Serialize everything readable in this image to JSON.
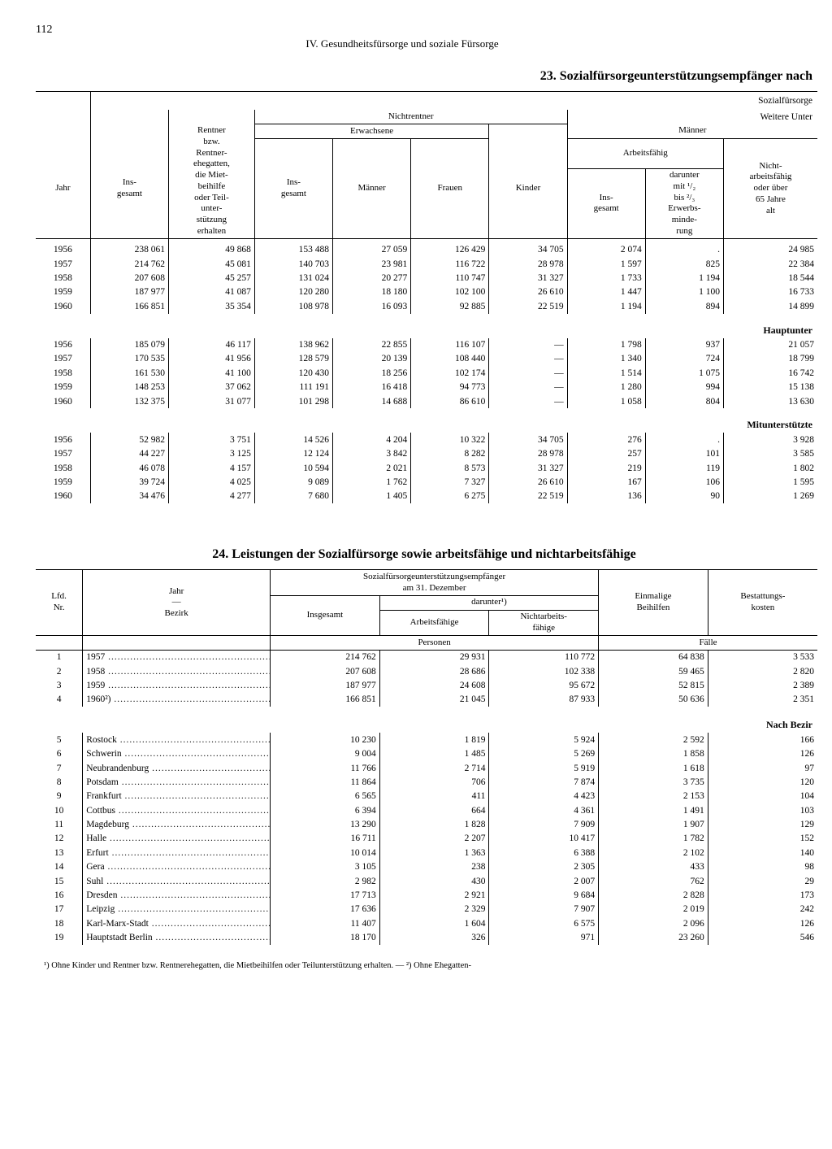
{
  "page": {
    "number": "112",
    "chapter": "IV. Gesundheitsfürsorge und soziale Fürsorge"
  },
  "t23": {
    "title": "23. Sozialfürsorgeunterstützungsempfänger nach",
    "superhead_right": "Sozialfürsorge",
    "headers": {
      "jahr": "Jahr",
      "insgesamt": "Ins-\ngesamt",
      "rentner": "Rentner\nbzw.\nRentner-\nehegatten,\ndie Miet-\nbeihilfe\noder Teil-\nunter-\nstützung\nerhalten",
      "nichtrentner": "Nichtrentner",
      "erwachsene": "Erwachsene",
      "erw_insgesamt": "Ins-\ngesamt",
      "maenner": "Männer",
      "frauen": "Frauen",
      "kinder": "Kinder",
      "weitere": "Weitere Unter",
      "maenner2": "Männer",
      "arbeitsfaehig": "Arbeitsfähig",
      "af_insgesamt": "Ins-\ngesamt",
      "af_darunter": "darunter\nmit ¹/₂\nbis ²/₃\nErwerbs-\nminde-\nrung",
      "nicht_af": "Nicht-\narbeitsfähig\noder über\n65 Jahre\nalt"
    },
    "blocks": [
      {
        "label": "",
        "rows": [
          [
            "1956",
            "238 061",
            "49 868",
            "153 488",
            "27 059",
            "126 429",
            "34 705",
            "2 074",
            ".",
            "24 985"
          ],
          [
            "1957",
            "214 762",
            "45 081",
            "140 703",
            "23 981",
            "116 722",
            "28 978",
            "1 597",
            "825",
            "22 384"
          ],
          [
            "1958",
            "207 608",
            "45 257",
            "131 024",
            "20 277",
            "110 747",
            "31 327",
            "1 733",
            "1 194",
            "18 544"
          ],
          [
            "1959",
            "187 977",
            "41 087",
            "120 280",
            "18 180",
            "102 100",
            "26 610",
            "1 447",
            "1 100",
            "16 733"
          ],
          [
            "1960",
            "166 851",
            "35 354",
            "108 978",
            "16 093",
            "92 885",
            "22 519",
            "1 194",
            "894",
            "14 899"
          ]
        ]
      },
      {
        "label": "Hauptunter",
        "rows": [
          [
            "1956",
            "185 079",
            "46 117",
            "138 962",
            "22 855",
            "116 107",
            "—",
            "1 798",
            "937",
            "21 057"
          ],
          [
            "1957",
            "170 535",
            "41 956",
            "128 579",
            "20 139",
            "108 440",
            "—",
            "1 340",
            "724",
            "18 799"
          ],
          [
            "1958",
            "161 530",
            "41 100",
            "120 430",
            "18 256",
            "102 174",
            "—",
            "1 514",
            "1 075",
            "16 742"
          ],
          [
            "1959",
            "148 253",
            "37 062",
            "111 191",
            "16 418",
            "94 773",
            "—",
            "1 280",
            "994",
            "15 138"
          ],
          [
            "1960",
            "132 375",
            "31 077",
            "101 298",
            "14 688",
            "86 610",
            "—",
            "1 058",
            "804",
            "13 630"
          ]
        ]
      },
      {
        "label": "Mitunterstützte",
        "rows": [
          [
            "1956",
            "52 982",
            "3 751",
            "14 526",
            "4 204",
            "10 322",
            "34 705",
            "276",
            ".",
            "3 928"
          ],
          [
            "1957",
            "44 227",
            "3 125",
            "12 124",
            "3 842",
            "8 282",
            "28 978",
            "257",
            "101",
            "3 585"
          ],
          [
            "1958",
            "46 078",
            "4 157",
            "10 594",
            "2 021",
            "8 573",
            "31 327",
            "219",
            "119",
            "1 802"
          ],
          [
            "1959",
            "39 724",
            "4 025",
            "9 089",
            "1 762",
            "7 327",
            "26 610",
            "167",
            "106",
            "1 595"
          ],
          [
            "1960",
            "34 476",
            "4 277",
            "7 680",
            "1 405",
            "6 275",
            "22 519",
            "136",
            "90",
            "1 269"
          ]
        ]
      }
    ]
  },
  "t24": {
    "title": "24. Leistungen der Sozialfürsorge sowie arbeitsfähige und nichtarbeitsfähige",
    "headers": {
      "lfd": "Lfd.\nNr.",
      "jahr_bezirk": "Jahr\n—\nBezirk",
      "sozial": "Sozialfürsorgeunterstützungsempfänger\nam 31. Dezember",
      "insgesamt": "Insgesamt",
      "darunter": "darunter¹)",
      "arbeitsfaehige": "Arbeitsfähige",
      "nichtarbeitsfaehige": "Nichtarbeits-\nfähige",
      "personen": "Personen",
      "einmalige": "Einmalige\nBeihilfen",
      "bestattung": "Bestattungs-\nkosten",
      "faelle": "Fälle"
    },
    "blocks": [
      {
        "label": "",
        "rows": [
          [
            "1",
            "1957",
            "214 762",
            "29 931",
            "110 772",
            "64 838",
            "3 533"
          ],
          [
            "2",
            "1958",
            "207 608",
            "28 686",
            "102 338",
            "59 465",
            "2 820"
          ],
          [
            "3",
            "1959",
            "187 977",
            "24 608",
            "95 672",
            "52 815",
            "2 389"
          ],
          [
            "4",
            "1960²)",
            "166 851",
            "21 045",
            "87 933",
            "50 636",
            "2 351"
          ]
        ]
      },
      {
        "label": "Nach Bezir",
        "rows": [
          [
            "5",
            "Rostock",
            "10 230",
            "1 819",
            "5 924",
            "2 592",
            "166"
          ],
          [
            "6",
            "Schwerin",
            "9 004",
            "1 485",
            "5 269",
            "1 858",
            "126"
          ],
          [
            "7",
            "Neubrandenburg",
            "11 766",
            "2 714",
            "5 919",
            "1 618",
            "97"
          ],
          [
            "8",
            "Potsdam",
            "11 864",
            "706",
            "7 874",
            "3 735",
            "120"
          ],
          [
            "9",
            "Frankfurt",
            "6 565",
            "411",
            "4 423",
            "2 153",
            "104"
          ],
          [
            "10",
            "Cottbus",
            "6 394",
            "664",
            "4 361",
            "1 491",
            "103"
          ],
          [
            "11",
            "Magdeburg",
            "13 290",
            "1 828",
            "7 909",
            "1 907",
            "129"
          ],
          [
            "12",
            "Halle",
            "16 711",
            "2 207",
            "10 417",
            "1 782",
            "152"
          ],
          [
            "13",
            "Erfurt",
            "10 014",
            "1 363",
            "6 388",
            "2 102",
            "140"
          ],
          [
            "14",
            "Gera",
            "3 105",
            "238",
            "2 305",
            "433",
            "98"
          ],
          [
            "15",
            "Suhl",
            "2 982",
            "430",
            "2 007",
            "762",
            "29"
          ],
          [
            "16",
            "Dresden",
            "17 713",
            "2 921",
            "9 684",
            "2 828",
            "173"
          ],
          [
            "17",
            "Leipzig",
            "17 636",
            "2 329",
            "7 907",
            "2 019",
            "242"
          ],
          [
            "18",
            "Karl-Marx-Stadt",
            "11 407",
            "1 604",
            "6 575",
            "2 096",
            "126"
          ],
          [
            "19",
            "Hauptstadt Berlin",
            "18 170",
            "326",
            "971",
            "23 260",
            "546"
          ]
        ]
      }
    ],
    "footnote": "¹) Ohne Kinder und Rentner bzw. Rentnerehegatten, die Mietbeihilfen oder Teilunterstützung erhalten. — ²) Ohne Ehegatten-"
  }
}
